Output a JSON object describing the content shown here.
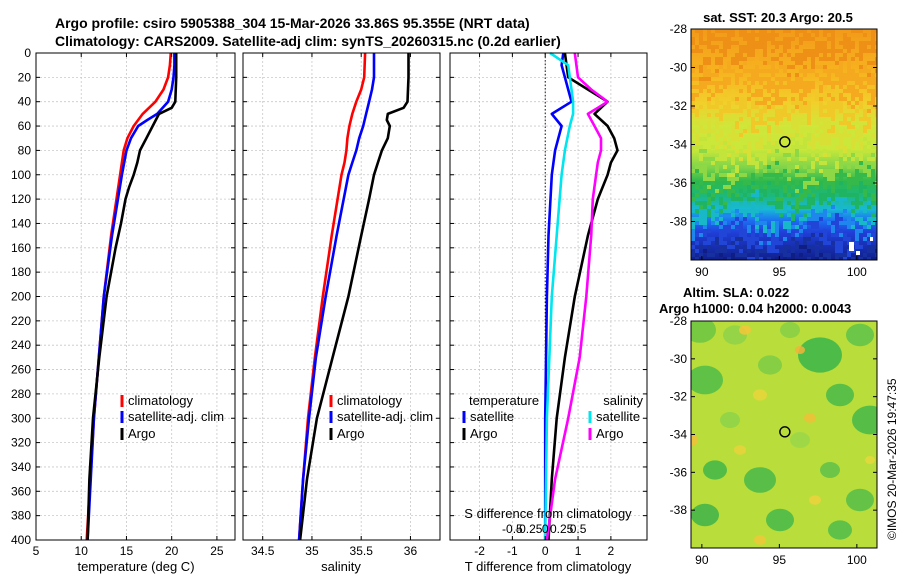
{
  "header": {
    "line1": "Argo profile: csiro 5905388_304 15-Mar-2026 33.86S 95.355E (NRT data)",
    "line2": "Climatology: CARS2009. Satellite-adj clim: synTS_20260315.nc (0.2d earlier)"
  },
  "footer_stamp": "©IMOS 20-Mar-2026 19:47:35",
  "colors": {
    "climatology": "#ff0000",
    "satellite_adj": "#0000ff",
    "argo": "#000000",
    "s_satellite": "#00e5ee",
    "s_argo": "#ff00ff"
  },
  "chart_data": [
    {
      "id": "temperature",
      "type": "line",
      "xlabel": "temperature (deg C)",
      "ylabel": "",
      "xlim": [
        5,
        27
      ],
      "ylim": [
        400,
        0
      ],
      "xticks": [
        5,
        10,
        15,
        20,
        25
      ],
      "yticks": [
        0,
        20,
        40,
        60,
        80,
        100,
        120,
        140,
        160,
        180,
        200,
        220,
        240,
        260,
        280,
        300,
        320,
        340,
        360,
        380,
        400
      ],
      "grid": true,
      "legend": {
        "position": "lower-right",
        "entries": [
          "climatology",
          "satellite-adj. clim",
          "Argo"
        ]
      },
      "series": [
        {
          "name": "climatology",
          "color": "#ff0000",
          "depth": [
            0,
            10,
            20,
            30,
            40,
            50,
            60,
            70,
            80,
            100,
            150,
            200,
            300,
            400
          ],
          "values": [
            19.9,
            19.8,
            19.6,
            19.1,
            18.2,
            16.8,
            15.8,
            15.1,
            14.7,
            14.3,
            13.3,
            12.5,
            11.4,
            10.6
          ]
        },
        {
          "name": "satellite-adj. clim",
          "color": "#0000ff",
          "depth": [
            0,
            10,
            20,
            30,
            40,
            50,
            55,
            60,
            70,
            80,
            100,
            150,
            200,
            300,
            400
          ],
          "values": [
            20.3,
            20.3,
            20.2,
            20.0,
            19.6,
            18.4,
            17.3,
            16.3,
            15.5,
            15.0,
            14.5,
            13.4,
            12.5,
            11.4,
            10.7
          ]
        },
        {
          "name": "Argo",
          "color": "#000000",
          "depth": [
            0,
            20,
            40,
            45,
            50,
            60,
            70,
            80,
            90,
            100,
            110,
            120,
            140,
            160,
            200,
            250,
            300,
            350,
            400
          ],
          "values": [
            20.5,
            20.5,
            20.4,
            20.0,
            18.6,
            17.9,
            17.2,
            16.5,
            16.2,
            15.8,
            15.3,
            14.9,
            14.4,
            13.8,
            12.8,
            12.0,
            11.3,
            10.9,
            10.7
          ]
        }
      ]
    },
    {
      "id": "salinity",
      "type": "line",
      "xlabel": "salinity",
      "ylabel": "",
      "xlim": [
        34.3,
        36.3
      ],
      "ylim": [
        400,
        0
      ],
      "xticks": [
        34.5,
        35,
        35.5,
        36
      ],
      "grid": true,
      "legend": {
        "position": "lower-right",
        "entries": [
          "climatology",
          "satellite-adj. clim",
          "Argo"
        ]
      },
      "series": [
        {
          "name": "climatology",
          "color": "#ff0000",
          "depth": [
            0,
            20,
            30,
            40,
            50,
            60,
            70,
            80,
            90,
            100,
            150,
            200,
            250,
            300,
            350,
            400
          ],
          "values": [
            35.54,
            35.53,
            35.5,
            35.45,
            35.41,
            35.38,
            35.36,
            35.35,
            35.33,
            35.3,
            35.2,
            35.11,
            35.03,
            34.96,
            34.91,
            34.87
          ]
        },
        {
          "name": "satellite-adj. clim",
          "color": "#0000ff",
          "depth": [
            0,
            20,
            30,
            40,
            50,
            60,
            70,
            80,
            90,
            100,
            150,
            200,
            250,
            300,
            350,
            400
          ],
          "values": [
            35.63,
            35.63,
            35.61,
            35.58,
            35.55,
            35.52,
            35.48,
            35.45,
            35.41,
            35.37,
            35.25,
            35.14,
            35.04,
            34.97,
            34.91,
            34.87
          ]
        },
        {
          "name": "Argo",
          "color": "#000000",
          "depth": [
            0,
            20,
            40,
            45,
            50,
            55,
            60,
            70,
            80,
            90,
            100,
            120,
            150,
            200,
            250,
            300,
            350,
            400
          ],
          "values": [
            35.98,
            35.98,
            35.97,
            35.93,
            35.77,
            35.76,
            35.79,
            35.77,
            35.71,
            35.67,
            35.63,
            35.58,
            35.5,
            35.37,
            35.21,
            35.05,
            34.95,
            34.88
          ]
        }
      ]
    },
    {
      "id": "difference",
      "type": "line",
      "xlabel": "T difference from climatology",
      "top_xlabel": "S difference from climatology",
      "xlim": [
        -2.9,
        3.1
      ],
      "ylim": [
        400,
        0
      ],
      "xticks": [
        -2,
        -1,
        0,
        1,
        2
      ],
      "top_ticks": {
        "positions": [
          -1,
          -0.5,
          0,
          0.5,
          1
        ],
        "labels": [
          "-0.5",
          "-0.25",
          "0",
          "0.25",
          "0.5"
        ]
      },
      "grid": true,
      "legend_temperature": {
        "title": "temperature",
        "entries": [
          "satellite",
          "Argo"
        ]
      },
      "legend_salinity": {
        "title": "salinity",
        "entries": [
          "satellite",
          "Argo"
        ]
      },
      "series": [
        {
          "name": "T satellite",
          "color": "#0000ff",
          "group": "temperature",
          "depth": [
            0,
            10,
            20,
            30,
            40,
            50,
            60,
            80,
            100,
            150,
            200,
            300,
            400
          ],
          "values": [
            0.55,
            0.5,
            0.6,
            0.7,
            0.8,
            0.2,
            0.5,
            0.3,
            0.2,
            0.1,
            0.05,
            0.0,
            0.0
          ]
        },
        {
          "name": "T Argo",
          "color": "#000000",
          "group": "temperature",
          "depth": [
            0,
            20,
            30,
            40,
            45,
            50,
            60,
            70,
            80,
            90,
            100,
            120,
            150,
            200,
            250,
            300,
            350,
            400
          ],
          "values": [
            0.6,
            0.7,
            1.3,
            1.9,
            1.7,
            1.5,
            1.9,
            2.1,
            2.2,
            2.0,
            1.9,
            1.6,
            1.3,
            0.9,
            0.6,
            0.35,
            0.2,
            0.1
          ]
        },
        {
          "name": "S satellite",
          "color": "#00e5ee",
          "group": "salinity",
          "depth": [
            0,
            10,
            20,
            30,
            40,
            50,
            60,
            80,
            100,
            150,
            200,
            300,
            400
          ],
          "values": [
            0.15,
            0.7,
            0.75,
            0.8,
            0.85,
            0.85,
            0.75,
            0.6,
            0.5,
            0.35,
            0.2,
            0.05,
            0.0
          ]
        },
        {
          "name": "S Argo",
          "color": "#ff00ff",
          "group": "salinity",
          "depth": [
            0,
            20,
            30,
            40,
            45,
            50,
            60,
            70,
            80,
            90,
            100,
            120,
            150,
            200,
            250,
            300,
            350,
            400
          ],
          "values": [
            0.9,
            1.0,
            1.4,
            1.9,
            1.6,
            1.3,
            1.5,
            1.7,
            1.7,
            1.6,
            1.55,
            1.45,
            1.4,
            1.25,
            1.05,
            0.7,
            0.3,
            0.05
          ]
        }
      ]
    },
    {
      "id": "sst_map",
      "type": "heatmap",
      "title": "sat. SST: 20.3 Argo: 20.5",
      "xlim": [
        89.3,
        101.3
      ],
      "ylim": [
        -40,
        -28
      ],
      "xticks": [
        90,
        95,
        100
      ],
      "yticks": [
        -38,
        -36,
        -34,
        -32,
        -30,
        -28
      ],
      "marker": {
        "lon": 95.355,
        "lat": -33.86
      },
      "field": "SST, warm (north) to cool (south)"
    },
    {
      "id": "sla_map",
      "type": "heatmap",
      "title": "Altim. SLA: 0.022",
      "subtitle": "Argo h1000: 0.04 h2000: 0.0043",
      "xlim": [
        89.3,
        101.3
      ],
      "ylim": [
        -40,
        -28
      ],
      "xticks": [
        90,
        95,
        100
      ],
      "yticks": [
        -38,
        -36,
        -34,
        -32,
        -30,
        -28
      ],
      "marker": {
        "lon": 95.355,
        "lat": -33.86
      },
      "field": "sea level anomaly"
    }
  ]
}
